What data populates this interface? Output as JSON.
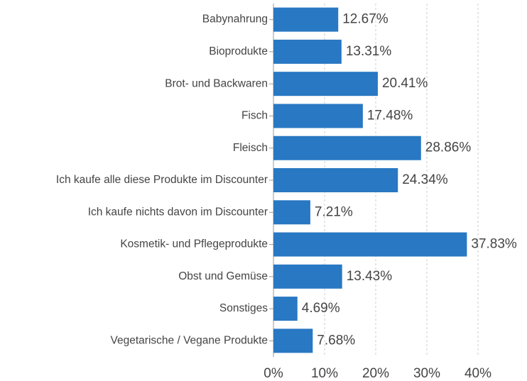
{
  "chart_data": {
    "type": "hbar",
    "categories": [
      "Babynahrung",
      "Bioprodukte",
      "Brot- und Backwaren",
      "Fisch",
      "Fleisch",
      "Ich kaufe alle diese Produkte im Discounter",
      "Ich kaufe nichts davon im Discounter",
      "Kosmetik- und Pflegeprodukte",
      "Obst und Gemüse",
      "Sonstiges",
      "Vegetarische / Vegane Produkte"
    ],
    "values": [
      12.67,
      13.31,
      20.41,
      17.48,
      28.86,
      24.34,
      7.21,
      37.83,
      13.43,
      4.69,
      7.68
    ],
    "value_labels": [
      "12.67%",
      "13.31%",
      "20.41%",
      "17.48%",
      "28.86%",
      "24.34%",
      "7.21%",
      "37.83%",
      "13.43%",
      "4.69%",
      "7.68%"
    ],
    "color": "#2878c3",
    "xlim": [
      0,
      40
    ],
    "xticks": [
      {
        "value": 0,
        "label": "0%"
      },
      {
        "value": 10,
        "label": "10%"
      },
      {
        "value": 20,
        "label": "20%"
      },
      {
        "value": 30,
        "label": "30%"
      },
      {
        "value": 40,
        "label": "40%"
      }
    ],
    "grid": true
  }
}
